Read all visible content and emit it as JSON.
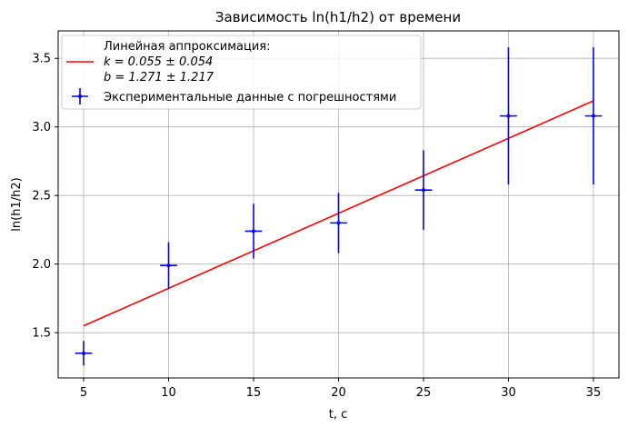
{
  "chart_data": {
    "type": "scatter",
    "title": "Зависимость ln(h1/h2) от времени",
    "xlabel": "t, с",
    "ylabel": "ln(h1/h2)",
    "xlim": [
      3.5,
      36.5
    ],
    "ylim": [
      1.17,
      3.7
    ],
    "xticks": [
      5,
      10,
      15,
      20,
      25,
      30,
      35
    ],
    "yticks": [
      1.5,
      2.0,
      2.5,
      3.0,
      3.5
    ],
    "xtick_labels": [
      "5",
      "10",
      "15",
      "20",
      "25",
      "30",
      "35"
    ],
    "ytick_labels": [
      "1.5",
      "2.0",
      "2.5",
      "3.0",
      "3.5"
    ],
    "grid": true,
    "legend_position": "top-left",
    "fit": {
      "label": "Линейная аппроксимация:",
      "k_text": "k = 0.055 ± 0.054",
      "b_text": "b = 1.271 ± 1.217",
      "k": 0.055,
      "b": 1.271,
      "x_range": [
        5,
        35
      ],
      "y_range": [
        1.55,
        3.19
      ],
      "color": "#ff0000"
    },
    "series": [
      {
        "name": "Экспериментальные данные с погрешностями",
        "color": "#0000ff",
        "x": [
          5,
          10,
          15,
          20,
          25,
          30,
          35
        ],
        "y": [
          1.35,
          1.99,
          2.24,
          2.3,
          2.54,
          3.08,
          3.08
        ],
        "yerr": [
          0.09,
          0.17,
          0.2,
          0.22,
          0.29,
          0.5,
          0.5
        ],
        "xerr": [
          0.5,
          0.5,
          0.5,
          0.5,
          0.5,
          0.5,
          0.5
        ]
      }
    ]
  }
}
